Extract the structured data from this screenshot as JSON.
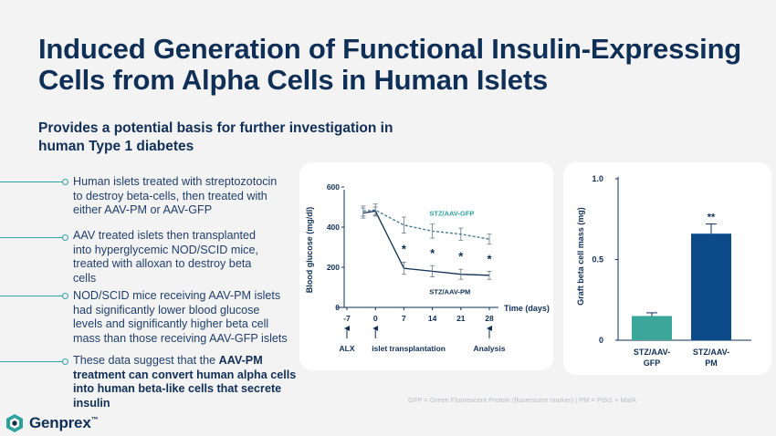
{
  "slide": {
    "title_line1": "Induced Generation of Functional Insulin-Expressing",
    "title_line2": "Cells from Alpha Cells in Human Islets",
    "subtitle_line1": "Provides a potential basis for further investigation in",
    "subtitle_line2": "human Type 1 diabetes",
    "bullets": [
      {
        "lines": [
          "Human islets treated with streptozotocin",
          "to destroy beta-cells, then treated with",
          "either AAV-PM or AAV-GFP"
        ]
      },
      {
        "lines": [
          "AAV treated islets then transplanted",
          "into hyperglycemic NOD/SCID mice,",
          "treated with alloxan to destroy beta",
          "cells"
        ]
      },
      {
        "lines": [
          "NOD/SCID mice receiving AAV-PM islets",
          "had significantly lower blood glucose",
          "levels and significantly higher beta cell",
          "mass than those receiving AAV-GFP islets"
        ]
      },
      {
        "pre": "These data suggest that the ",
        "bold1": "AAV-PM",
        "bold_lines": [
          "treatment can convert human alpha cells",
          "into human beta-like cells that secrete",
          "insulin"
        ]
      }
    ],
    "footnote": "GFP = Green Fluorescent Protein (fluorescent marker) | PM = Pdx1 + MafA",
    "logo_text": "Genprex",
    "logo_tm": "™"
  },
  "colors": {
    "navy": "#0f2f56",
    "teal": "#2fa3a0",
    "pm_bar": "#0c4a8a",
    "gfp_bar": "#3aa79a"
  },
  "chart_data": [
    {
      "type": "line",
      "ylabel": "Blood glucose (mg/dl)",
      "xlabel": "Time (days)",
      "x_ticks": [
        -7,
        0,
        7,
        14,
        21,
        28
      ],
      "y_ticks": [
        0,
        200,
        400,
        600
      ],
      "ylim": [
        0,
        600
      ],
      "series": [
        {
          "name": "STZ/AAV-GFP",
          "style": "dashed",
          "x": [
            -3,
            0,
            7,
            14,
            21,
            28
          ],
          "y": [
            480,
            485,
            410,
            380,
            365,
            340
          ],
          "err": [
            25,
            30,
            40,
            35,
            30,
            25
          ]
        },
        {
          "name": "STZ/AAV-PM",
          "style": "solid",
          "x": [
            -3,
            0,
            7,
            14,
            21,
            28
          ],
          "y": [
            470,
            480,
            195,
            180,
            165,
            160
          ],
          "err": [
            25,
            20,
            30,
            28,
            25,
            20
          ]
        }
      ],
      "significance": [
        {
          "x": 7,
          "label": "*"
        },
        {
          "x": 14,
          "label": "*"
        },
        {
          "x": 21,
          "label": "*"
        },
        {
          "x": 28,
          "label": "*"
        }
      ],
      "annotations": [
        {
          "x": -7,
          "label": "ALX"
        },
        {
          "x": 0,
          "label": "islet transplantation"
        },
        {
          "x": 28,
          "label": "Analysis"
        }
      ]
    },
    {
      "type": "bar",
      "ylabel": "Graft beta cell mass (mg)",
      "y_ticks": [
        "0",
        "0.5",
        "1.0"
      ],
      "y_tick_values": [
        0,
        0.5,
        1.0
      ],
      "ylim": [
        0,
        1.0
      ],
      "categories": [
        {
          "line1": "STZ/AAV-",
          "line2": "GFP"
        },
        {
          "line1": "STZ/AAV-",
          "line2": "PM"
        }
      ],
      "values": [
        0.15,
        0.66
      ],
      "errors": [
        0.02,
        0.06
      ],
      "significance": [
        "",
        "**"
      ]
    }
  ]
}
